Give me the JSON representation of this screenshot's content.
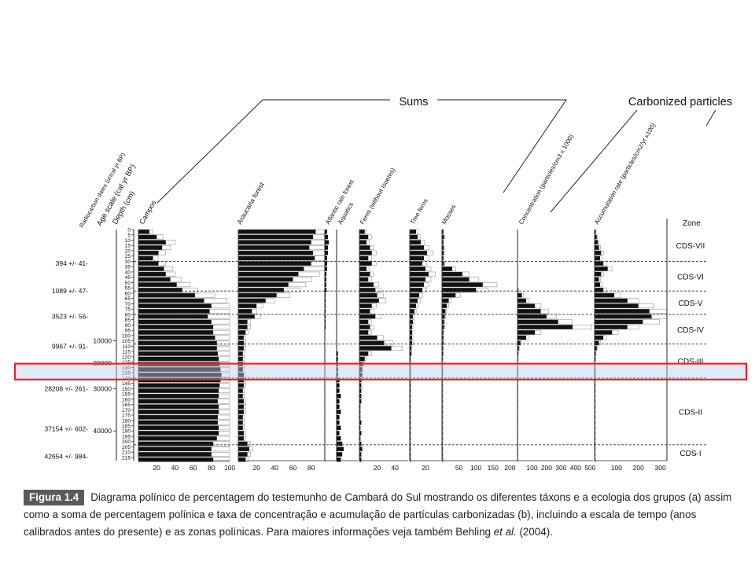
{
  "header": {
    "sums": "Sums",
    "carbonized": "Carbonized particles"
  },
  "columns": [
    {
      "key": "radiocarbon",
      "label": "Radiocarbon dates (uncal yr BP)"
    },
    {
      "key": "age",
      "label": "Age scale (cal yr BP)"
    },
    {
      "key": "depth",
      "label": "Depth (cm)"
    },
    {
      "key": "campos",
      "label": "Campos"
    },
    {
      "key": "araucaria",
      "label": "Araucaria forest"
    },
    {
      "key": "atlantic",
      "label": "Atlantic rain forest"
    },
    {
      "key": "aquatics",
      "label": "Aquatics"
    },
    {
      "key": "ferns",
      "label": "Ferns (without Isoetes)"
    },
    {
      "key": "treeferns",
      "label": "Tree ferns"
    },
    {
      "key": "mosses",
      "label": "Mosses"
    },
    {
      "key": "concentration",
      "label": "Concentration (particles/cm3 x 1000)"
    },
    {
      "key": "accumulation",
      "label": "Accumulation rate (particles/cm2/yr x100)"
    },
    {
      "key": "zone",
      "label": "Zone"
    }
  ],
  "radiocarbon_dates": [
    "394 +/- 41",
    "1089 +/- 47",
    "3523 +/- 56",
    "9967 +/- 91",
    "28208 +/- 261",
    "37154 +/- 602",
    "42654 +/- 984"
  ],
  "age_ticks": [
    "10000",
    "20000",
    "30000",
    "40000"
  ],
  "zones": [
    "CDS-VII",
    "CDS-VI",
    "CDS-V",
    "CDS-IV",
    "CDS-III",
    "CDS-II",
    "CDS-I"
  ],
  "x_ticks": {
    "campos": [
      "20",
      "40",
      "60",
      "80",
      "100"
    ],
    "araucaria": [
      "20",
      "40",
      "60",
      "80"
    ],
    "ferns": [
      "20",
      "40"
    ],
    "treeferns": [
      "20"
    ],
    "mosses": [
      "50",
      "100",
      "150",
      "200"
    ],
    "concentration": [
      "100",
      "200",
      "300",
      "400",
      "500"
    ],
    "accumulation": [
      "100",
      "200",
      "300"
    ]
  },
  "chart_data": {
    "type": "bar",
    "orientation": "horizontal",
    "depth_unit": "cm",
    "depths": [
      0,
      5,
      10,
      15,
      20,
      25,
      30,
      35,
      40,
      45,
      50,
      55,
      60,
      65,
      70,
      75,
      80,
      85,
      90,
      95,
      100,
      105,
      110,
      115,
      120,
      125,
      130,
      135,
      140,
      145,
      150,
      155,
      160,
      165,
      170,
      175,
      180,
      185,
      190,
      195,
      200,
      205,
      210,
      215
    ],
    "depth_labels": [
      "0",
      "5",
      "10",
      "15",
      "20",
      "25",
      "30",
      "35",
      "40",
      "45",
      "50",
      "55",
      "60",
      "65",
      "70",
      "75",
      "80",
      "85",
      "90",
      "95",
      "100",
      "105",
      "110",
      "115",
      "120",
      "125",
      "130",
      "135",
      "140",
      "145",
      "150",
      "155",
      "160",
      "165",
      "170",
      "175",
      "180",
      "185",
      "190",
      "195",
      "200",
      "205",
      "210",
      "215"
    ],
    "zone_boundaries_cm": [
      0,
      30,
      58,
      80,
      108,
      140,
      203,
      218
    ],
    "highlight_depth_range_cm": [
      125,
      140
    ],
    "series": [
      {
        "name": "Campos",
        "values": [
          12,
          20,
          30,
          26,
          22,
          16,
          22,
          28,
          30,
          35,
          42,
          48,
          62,
          72,
          80,
          78,
          76,
          80,
          82,
          82,
          84,
          86,
          86,
          87,
          88,
          89,
          90,
          91,
          90,
          89,
          88,
          88,
          87,
          88,
          88,
          87,
          87,
          88,
          88,
          86,
          82,
          80,
          80,
          82
        ]
      },
      {
        "name": "Araucaria forest",
        "values": [
          85,
          82,
          80,
          78,
          82,
          84,
          80,
          72,
          66,
          60,
          55,
          50,
          42,
          30,
          20,
          15,
          18,
          10,
          10,
          8,
          6,
          6,
          6,
          5,
          5,
          5,
          5,
          6,
          6,
          6,
          5,
          5,
          6,
          6,
          6,
          5,
          5,
          5,
          6,
          6,
          10,
          12,
          10,
          8
        ]
      },
      {
        "name": "Atlantic rain forest",
        "values": [
          3,
          4,
          5,
          4,
          4,
          3,
          3,
          3,
          2,
          2,
          2,
          2,
          1,
          1,
          1,
          1,
          1,
          1,
          1,
          0,
          0,
          0,
          0,
          0,
          0,
          0,
          0,
          0,
          0,
          0,
          0,
          0,
          0,
          0,
          0,
          0,
          0,
          0,
          0,
          0,
          0,
          0,
          0,
          0
        ]
      },
      {
        "name": "Aquatics",
        "values": [
          0,
          0,
          0,
          0,
          0,
          0,
          0,
          0,
          0,
          0,
          0,
          0,
          0,
          0,
          0,
          0,
          0,
          0,
          0,
          0,
          0,
          0,
          0,
          1,
          1,
          1,
          1,
          1,
          2,
          2,
          2,
          3,
          2,
          2,
          3,
          2,
          2,
          3,
          2,
          3,
          4,
          5,
          4,
          3
        ]
      },
      {
        "name": "Ferns (without Isoetes)",
        "values": [
          6,
          10,
          8,
          12,
          14,
          10,
          14,
          8,
          12,
          10,
          16,
          18,
          20,
          22,
          14,
          12,
          18,
          10,
          12,
          10,
          20,
          28,
          36,
          10,
          6,
          4,
          3,
          3,
          2,
          2,
          2,
          2,
          2,
          1,
          1,
          1,
          2,
          1,
          2,
          1,
          2,
          3,
          2,
          2
        ]
      },
      {
        "name": "Tree ferns",
        "values": [
          8,
          10,
          14,
          18,
          22,
          18,
          16,
          20,
          24,
          20,
          18,
          16,
          12,
          10,
          8,
          6,
          4,
          4,
          3,
          3,
          3,
          3,
          2,
          2,
          1,
          1,
          1,
          1,
          1,
          1,
          1,
          1,
          1,
          1,
          1,
          1,
          1,
          1,
          1,
          1,
          1,
          1,
          1,
          1
        ]
      },
      {
        "name": "Mosses",
        "values": [
          4,
          6,
          4,
          5,
          5,
          4,
          6,
          30,
          60,
          80,
          120,
          100,
          40,
          20,
          14,
          10,
          8,
          6,
          6,
          4,
          4,
          4,
          3,
          3,
          2,
          2,
          2,
          2,
          2,
          2,
          2,
          2,
          2,
          2,
          2,
          2,
          2,
          2,
          2,
          2,
          2,
          2,
          2,
          2
        ]
      },
      {
        "name": "Concentration (particles/cm3 x 1000)",
        "values": [
          2,
          2,
          2,
          2,
          2,
          2,
          2,
          2,
          2,
          2,
          2,
          5,
          30,
          60,
          120,
          160,
          200,
          280,
          380,
          120,
          60,
          20,
          10,
          5,
          4,
          3,
          3,
          3,
          3,
          3,
          3,
          3,
          3,
          3,
          3,
          3,
          3,
          3,
          3,
          3,
          3,
          3,
          3,
          3
        ]
      },
      {
        "name": "Accumulation rate (particles/cm2/yr x100)",
        "values": [
          5,
          10,
          15,
          20,
          30,
          25,
          40,
          60,
          30,
          20,
          25,
          40,
          90,
          150,
          200,
          250,
          260,
          220,
          150,
          80,
          40,
          20,
          10,
          5,
          4,
          3,
          3,
          3,
          3,
          3,
          3,
          3,
          3,
          3,
          3,
          3,
          3,
          3,
          3,
          3,
          3,
          3,
          3,
          3
        ]
      }
    ]
  },
  "caption": {
    "figure_label": "Figura 1.4",
    "text": "Diagrama polínico de percentagem do testemunho de Cambará do Sul mostrando os diferentes táxons e a ecologia dos grupos (a) assim como a soma de percentagem polínica e taxa de concentração e acumulação de partículas carbonizadas (b), incluindo a escala de tempo (anos calibrados antes do presente) e as zonas polínicas. Para maiores informações veja também Behling ",
    "italic": "et al.",
    "tail": " (2004)."
  },
  "highlight_color": "#e0262b"
}
